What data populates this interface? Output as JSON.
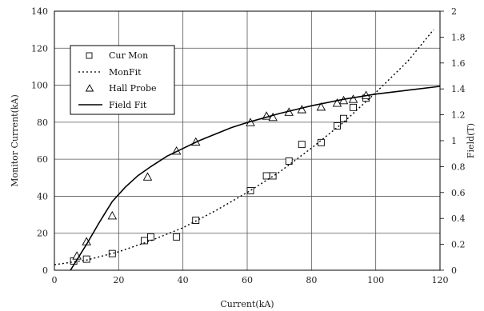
{
  "chart_data": {
    "type": "scatter",
    "title": "",
    "xlabel": "Current(kA)",
    "ylabel_left": "Monitor Current(kA)",
    "ylabel_right": "Field(T)",
    "xlim": [
      0,
      120
    ],
    "ylim_left": [
      0,
      140
    ],
    "ylim_right": [
      0,
      2
    ],
    "x_ticks": [
      "0",
      "20",
      "40",
      "60",
      "80",
      "100",
      "120"
    ],
    "y_left_ticks": [
      "0",
      "20",
      "40",
      "60",
      "80",
      "100",
      "120",
      "140"
    ],
    "y_right_ticks": [
      "0",
      "0.2",
      "0.4",
      "0.6",
      "0.8",
      "1",
      "1.2",
      "1.4",
      "1.6",
      "1.8",
      "2"
    ],
    "grid": true,
    "legend_position": "upper-left",
    "series": [
      {
        "name": "Cur Mon",
        "style": "square-marker",
        "axis": "left",
        "x": [
          6,
          10,
          18,
          28,
          30,
          38,
          44,
          61,
          66,
          68,
          73,
          77,
          83,
          88,
          90,
          93,
          97
        ],
        "y": [
          5,
          6,
          9,
          16,
          18,
          18,
          27,
          43,
          51,
          51,
          59,
          68,
          69,
          78,
          82,
          88,
          93
        ]
      },
      {
        "name": "MonFit",
        "style": "dotted-line",
        "axis": "left",
        "x": [
          0,
          10,
          20,
          30,
          40,
          50,
          60,
          70,
          80,
          90,
          100,
          110,
          118
        ],
        "y": [
          3,
          5.5,
          10,
          16,
          23,
          32,
          42,
          53,
          66,
          80,
          96,
          113,
          130
        ]
      },
      {
        "name": "Hall Probe",
        "style": "triangle-marker",
        "axis": "right",
        "x": [
          7,
          10,
          18,
          29,
          38,
          44,
          61,
          66,
          68,
          73,
          77,
          83,
          88,
          90,
          93,
          97
        ],
        "y": [
          0.11,
          0.22,
          0.42,
          0.72,
          0.92,
          0.99,
          1.14,
          1.19,
          1.18,
          1.22,
          1.24,
          1.26,
          1.29,
          1.31,
          1.32,
          1.35
        ]
      },
      {
        "name": "Field Fit",
        "style": "solid-line",
        "axis": "right",
        "x": [
          5,
          7,
          10,
          14,
          18,
          22,
          26,
          30,
          35,
          40,
          45,
          50,
          55,
          60,
          70,
          80,
          90,
          100,
          110,
          120
        ],
        "y": [
          0.0,
          0.08,
          0.2,
          0.37,
          0.53,
          0.64,
          0.73,
          0.8,
          0.88,
          0.94,
          1.0,
          1.05,
          1.1,
          1.14,
          1.21,
          1.27,
          1.32,
          1.36,
          1.39,
          1.42
        ]
      }
    ]
  }
}
